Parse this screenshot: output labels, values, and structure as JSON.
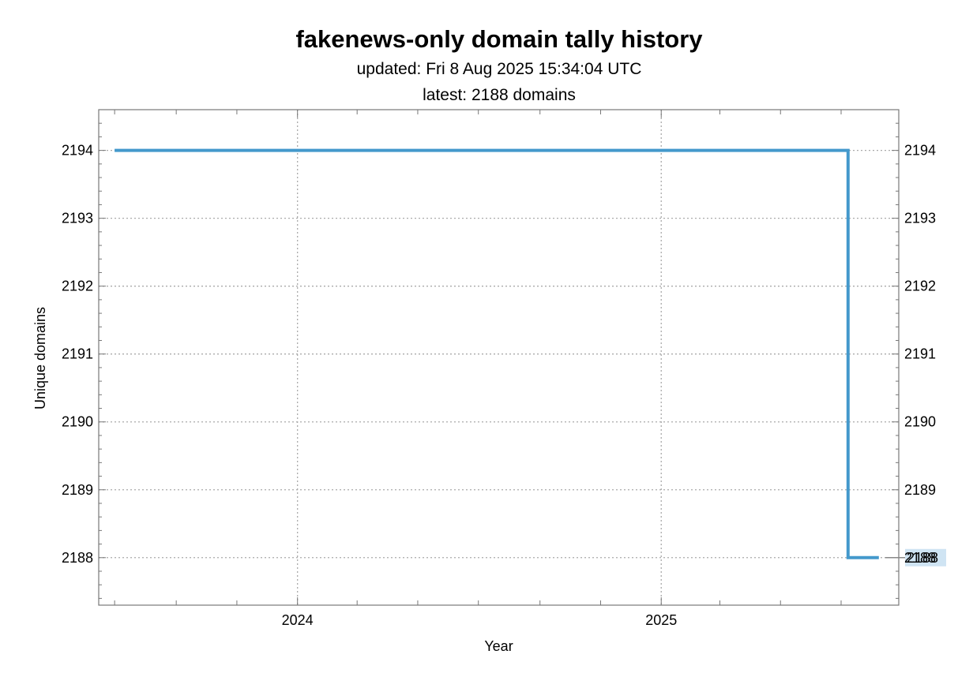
{
  "chart_data": {
    "type": "line",
    "line_style": "step",
    "title": "fakenews-only domain tally history",
    "subtitle_updated": "updated: Fri 8 Aug 2025 15:34:04 UTC",
    "subtitle_latest": "latest: 2188 domains",
    "xlabel": "Year",
    "ylabel": "Unique domains",
    "x_ticks": [
      "2024",
      "2025"
    ],
    "y_ticks": [
      2188,
      2189,
      2190,
      2191,
      2192,
      2193,
      2194
    ],
    "ylim": [
      2187.3,
      2194.6
    ],
    "xlim": [
      "2023-06-15",
      "2025-08-28"
    ],
    "grid": true,
    "series": [
      {
        "color": "#4499cc",
        "points": [
          {
            "x": "2023-07-01",
            "y": 2194
          },
          {
            "x": "2025-07-08",
            "y": 2194
          },
          {
            "x": "2025-07-08",
            "y": 2188
          },
          {
            "x": "2025-08-08",
            "y": 2188
          }
        ]
      }
    ],
    "end_label": "2188",
    "end_label_color": "#cfe4f3"
  }
}
